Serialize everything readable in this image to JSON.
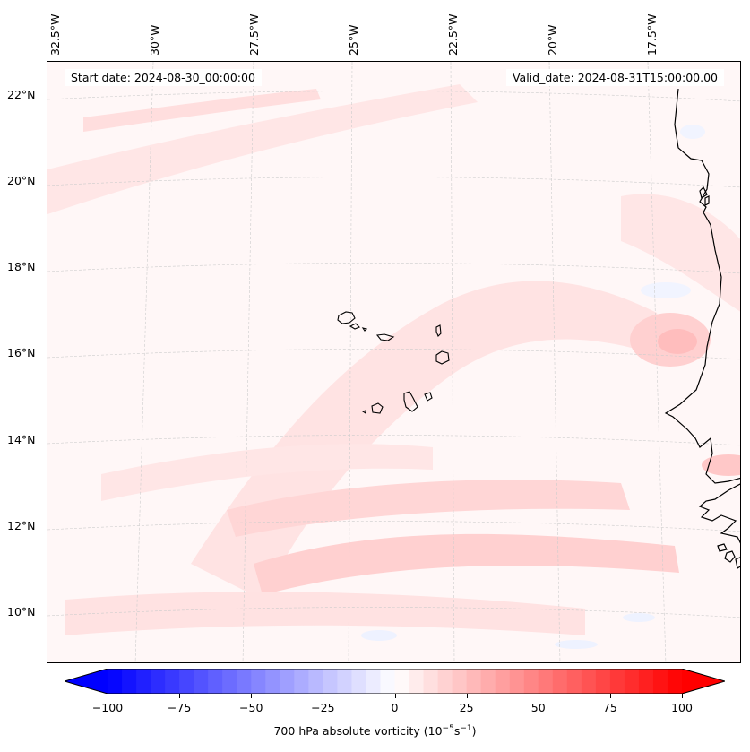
{
  "header": {
    "start_date": "Start date: 2024-08-30_00:00:00",
    "valid_date": "Valid_date: 2024-08-31T15:00:00.00"
  },
  "map": {
    "longitude_labels": [
      "32.5°W",
      "30°W",
      "27.5°W",
      "25°W",
      "22.5°W",
      "20°W",
      "17.5°W"
    ],
    "latitude_labels": [
      "22°N",
      "20°N",
      "18°N",
      "16°N",
      "14°N",
      "12°N",
      "10°N"
    ],
    "field_colors": {
      "background": "#fff7f7",
      "weak_positive": "#ffe6e6",
      "moderate_positive": "#ffd3d3",
      "strong_positive": "#ffbdbd",
      "weak_negative": "#eef2ff"
    },
    "coastline_color": "#000000",
    "gridline_color": "#cccccc"
  },
  "colorbar": {
    "ticks": [
      "−100",
      "−75",
      "−50",
      "−25",
      "0",
      "25",
      "50",
      "75",
      "100"
    ],
    "label_main": "700 hPa absolute vorticity (10",
    "label_exp1": "−5",
    "label_mid": "s",
    "label_exp2": "−1",
    "label_end": ")",
    "colors": {
      "min": "#0000ff",
      "mid": "#ffffff",
      "max": "#ff0000"
    },
    "range": [
      -100,
      100
    ],
    "extend": "both"
  }
}
